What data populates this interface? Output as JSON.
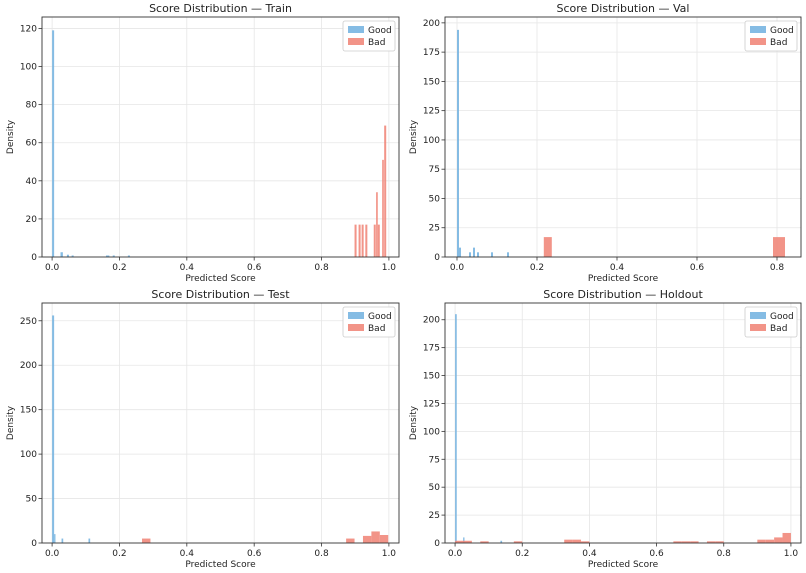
{
  "chart_data": [
    {
      "type": "histogram",
      "title": "Score Distribution — Train",
      "xlabel": "Predicted Score",
      "ylabel": "Density",
      "xlim": [
        -0.03,
        1.03
      ],
      "ylim": [
        0,
        126
      ],
      "xticks": [
        0.0,
        0.2,
        0.4,
        0.6,
        0.8,
        1.0
      ],
      "yticks": [
        0,
        20,
        40,
        60,
        80,
        100,
        120
      ],
      "legend_position": "top-right",
      "grid": true,
      "series": [
        {
          "name": "Good",
          "color": "#74b3e0",
          "bins": [
            {
              "x0": 0.0,
              "x1": 0.006,
              "y": 119
            },
            {
              "x0": 0.025,
              "x1": 0.032,
              "y": 2.5
            },
            {
              "x0": 0.044,
              "x1": 0.05,
              "y": 1.2
            },
            {
              "x0": 0.058,
              "x1": 0.064,
              "y": 0.8
            },
            {
              "x0": 0.16,
              "x1": 0.17,
              "y": 0.8
            },
            {
              "x0": 0.18,
              "x1": 0.186,
              "y": 0.8
            },
            {
              "x0": 0.225,
              "x1": 0.231,
              "y": 0.8
            }
          ]
        },
        {
          "name": "Bad",
          "color": "#f08577",
          "bins": [
            {
              "x0": 0.898,
              "x1": 0.904,
              "y": 17
            },
            {
              "x0": 0.91,
              "x1": 0.916,
              "y": 17
            },
            {
              "x0": 0.919,
              "x1": 0.925,
              "y": 17
            },
            {
              "x0": 0.93,
              "x1": 0.936,
              "y": 17
            },
            {
              "x0": 0.955,
              "x1": 0.961,
              "y": 17
            },
            {
              "x0": 0.962,
              "x1": 0.967,
              "y": 34
            },
            {
              "x0": 0.967,
              "x1": 0.973,
              "y": 17
            },
            {
              "x0": 0.98,
              "x1": 0.985,
              "y": 51
            },
            {
              "x0": 0.986,
              "x1": 0.992,
              "y": 69
            }
          ]
        }
      ]
    },
    {
      "type": "histogram",
      "title": "Score Distribution — Val",
      "xlabel": "Predicted Score",
      "ylabel": "Density",
      "xlim": [
        -0.03,
        0.86
      ],
      "ylim": [
        0,
        205
      ],
      "xticks": [
        0.0,
        0.2,
        0.4,
        0.6,
        0.8
      ],
      "yticks": [
        0,
        25,
        50,
        75,
        100,
        125,
        150,
        175,
        200
      ],
      "legend_position": "top-right",
      "grid": true,
      "series": [
        {
          "name": "Good",
          "color": "#74b3e0",
          "bins": [
            {
              "x0": 0.0,
              "x1": 0.005,
              "y": 194
            },
            {
              "x0": 0.005,
              "x1": 0.01,
              "y": 8
            },
            {
              "x0": 0.03,
              "x1": 0.035,
              "y": 4
            },
            {
              "x0": 0.04,
              "x1": 0.045,
              "y": 8
            },
            {
              "x0": 0.05,
              "x1": 0.055,
              "y": 4
            },
            {
              "x0": 0.085,
              "x1": 0.09,
              "y": 4
            },
            {
              "x0": 0.125,
              "x1": 0.13,
              "y": 4
            }
          ]
        },
        {
          "name": "Bad",
          "color": "#f08577",
          "bins": [
            {
              "x0": 0.217,
              "x1": 0.237,
              "y": 17
            },
            {
              "x0": 0.79,
              "x1": 0.82,
              "y": 17
            }
          ]
        }
      ]
    },
    {
      "type": "histogram",
      "title": "Score Distribution — Test",
      "xlabel": "Predicted Score",
      "ylabel": "Density",
      "xlim": [
        -0.03,
        1.03
      ],
      "ylim": [
        0,
        270
      ],
      "xticks": [
        0.0,
        0.2,
        0.4,
        0.6,
        0.8,
        1.0
      ],
      "yticks": [
        0,
        50,
        100,
        150,
        200,
        250
      ],
      "legend_position": "top-right",
      "grid": true,
      "series": [
        {
          "name": "Good",
          "color": "#74b3e0",
          "bins": [
            {
              "x0": 0.0,
              "x1": 0.006,
              "y": 256
            },
            {
              "x0": 0.006,
              "x1": 0.01,
              "y": 10
            },
            {
              "x0": 0.028,
              "x1": 0.033,
              "y": 5
            },
            {
              "x0": 0.108,
              "x1": 0.113,
              "y": 5
            }
          ]
        },
        {
          "name": "Bad",
          "color": "#f08577",
          "bins": [
            {
              "x0": 0.267,
              "x1": 0.292,
              "y": 5
            },
            {
              "x0": 0.873,
              "x1": 0.898,
              "y": 5
            },
            {
              "x0": 0.923,
              "x1": 0.948,
              "y": 8
            },
            {
              "x0": 0.948,
              "x1": 0.973,
              "y": 13
            },
            {
              "x0": 0.973,
              "x1": 0.998,
              "y": 9
            }
          ]
        }
      ]
    },
    {
      "type": "histogram",
      "title": "Score Distribution — Holdout",
      "xlabel": "Predicted Score",
      "ylabel": "Density",
      "xlim": [
        -0.03,
        1.03
      ],
      "ylim": [
        0,
        215
      ],
      "xticks": [
        0.0,
        0.2,
        0.4,
        0.6,
        0.8,
        1.0
      ],
      "yticks": [
        0,
        25,
        50,
        75,
        100,
        125,
        150,
        175,
        200
      ],
      "legend_position": "top-right",
      "grid": true,
      "series": [
        {
          "name": "Good",
          "color": "#74b3e0",
          "bins": [
            {
              "x0": 0.0,
              "x1": 0.005,
              "y": 205
            },
            {
              "x0": 0.024,
              "x1": 0.028,
              "y": 5
            },
            {
              "x0": 0.135,
              "x1": 0.14,
              "y": 2
            }
          ]
        },
        {
          "name": "Bad",
          "color": "#f08577",
          "bins": [
            {
              "x0": 0.0,
              "x1": 0.025,
              "y": 2
            },
            {
              "x0": 0.025,
              "x1": 0.05,
              "y": 2
            },
            {
              "x0": 0.075,
              "x1": 0.1,
              "y": 1.5
            },
            {
              "x0": 0.175,
              "x1": 0.2,
              "y": 1.5
            },
            {
              "x0": 0.325,
              "x1": 0.35,
              "y": 3
            },
            {
              "x0": 0.35,
              "x1": 0.375,
              "y": 3
            },
            {
              "x0": 0.375,
              "x1": 0.4,
              "y": 1.5
            },
            {
              "x0": 0.65,
              "x1": 0.675,
              "y": 1.5
            },
            {
              "x0": 0.675,
              "x1": 0.7,
              "y": 1.5
            },
            {
              "x0": 0.7,
              "x1": 0.725,
              "y": 1.5
            },
            {
              "x0": 0.75,
              "x1": 0.775,
              "y": 1.5
            },
            {
              "x0": 0.775,
              "x1": 0.8,
              "y": 1.5
            },
            {
              "x0": 0.9,
              "x1": 0.925,
              "y": 3
            },
            {
              "x0": 0.925,
              "x1": 0.95,
              "y": 3
            },
            {
              "x0": 0.95,
              "x1": 0.975,
              "y": 5
            },
            {
              "x0": 0.975,
              "x1": 1.0,
              "y": 9
            }
          ]
        }
      ]
    }
  ]
}
